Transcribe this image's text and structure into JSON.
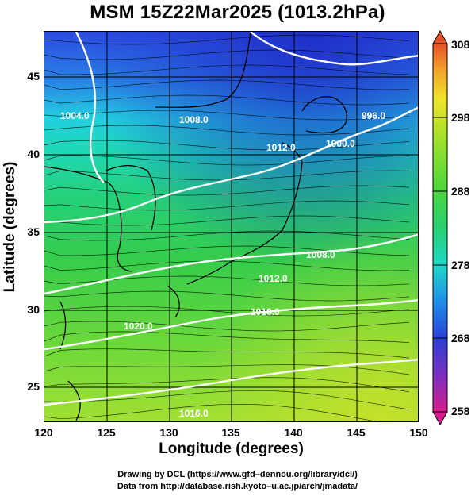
{
  "title": "MSM 15Z22Mar2025 (1013.2hPa)",
  "axes": {
    "xlabel": "Longitude (degrees)",
    "ylabel": "Latitude  (degrees)",
    "xticks": [
      "120",
      "125",
      "130",
      "135",
      "140",
      "145",
      "150"
    ],
    "yticks": [
      "45",
      "40",
      "35",
      "30",
      "25"
    ],
    "xlim": [
      120,
      150
    ],
    "ylim": [
      22.4,
      47.6
    ]
  },
  "colorbar": {
    "ticks": [
      "308",
      "298",
      "288",
      "278",
      "268",
      "258"
    ],
    "range": [
      258,
      308
    ],
    "colors": [
      "#d81e8c",
      "#7a2fc0",
      "#2a3fd8",
      "#1f8fe8",
      "#21d8c8",
      "#28d070",
      "#55d838",
      "#a6e02a",
      "#f0e42a",
      "#f0a12a",
      "#e8502a"
    ]
  },
  "isobars": [
    "1004.0",
    "1008.0",
    "996.0",
    "1012.0",
    "1000.0",
    "1008.0",
    "1012.0",
    "1016.0",
    "1020.0",
    "1016.0"
  ],
  "credits": {
    "line1": "Drawing by DCL (https://www.gfd–dennou.org/library/dcl/)",
    "line2": "Data from http://database.rish.kyoto–u.ac.jp/arch/jmadata/"
  }
}
